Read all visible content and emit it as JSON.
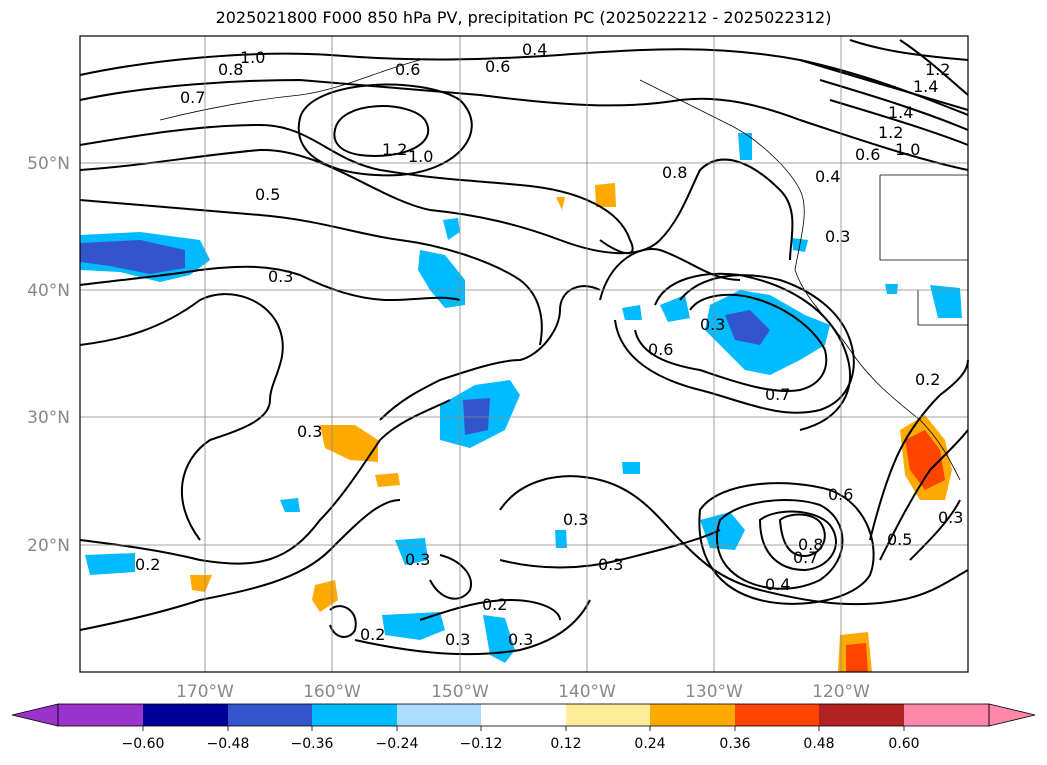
{
  "title": "2025021800 F000 850 hPa PV, precipitation PC (2025022212 - 2025022312)",
  "map": {
    "lon_range": [
      -180,
      -110
    ],
    "lat_range": [
      10,
      60
    ],
    "lon_ticks": [
      "170°W",
      "160°W",
      "150°W",
      "140°W",
      "130°W",
      "120°W"
    ],
    "lat_ticks": [
      "50°N",
      "40°N",
      "30°N",
      "20°N"
    ],
    "gridlines": true,
    "contour_labels": [
      "1.0",
      "0.8",
      "0.6",
      "0.4",
      "0.6",
      "1.2",
      "1.0",
      "0.5",
      "0.8",
      "0.3",
      "0.3",
      "0.6",
      "0.3",
      "0.7",
      "0.3",
      "0.3",
      "0.2",
      "0.3",
      "0.3",
      "0.2",
      "0.2",
      "0.3",
      "0.3",
      "0.6",
      "0.8",
      "0.7",
      "0.4",
      "0.5",
      "0.3",
      "0.2",
      "1.4",
      "1.2",
      "1.0",
      "1.2",
      "1.4",
      "0.4",
      "0.6",
      "0.7"
    ]
  },
  "colorbar": {
    "ticks": [
      "−0.60",
      "−0.48",
      "−0.36",
      "−0.24",
      "−0.12",
      "0.12",
      "0.24",
      "0.36",
      "0.48",
      "0.60"
    ],
    "colors": [
      "#9933cc",
      "#000099",
      "#3355cc",
      "#00bbff",
      "#aaddff",
      "#ffffff",
      "#ffee99",
      "#ffaa00",
      "#ff4400",
      "#b22222",
      "#ff88aa"
    ]
  }
}
